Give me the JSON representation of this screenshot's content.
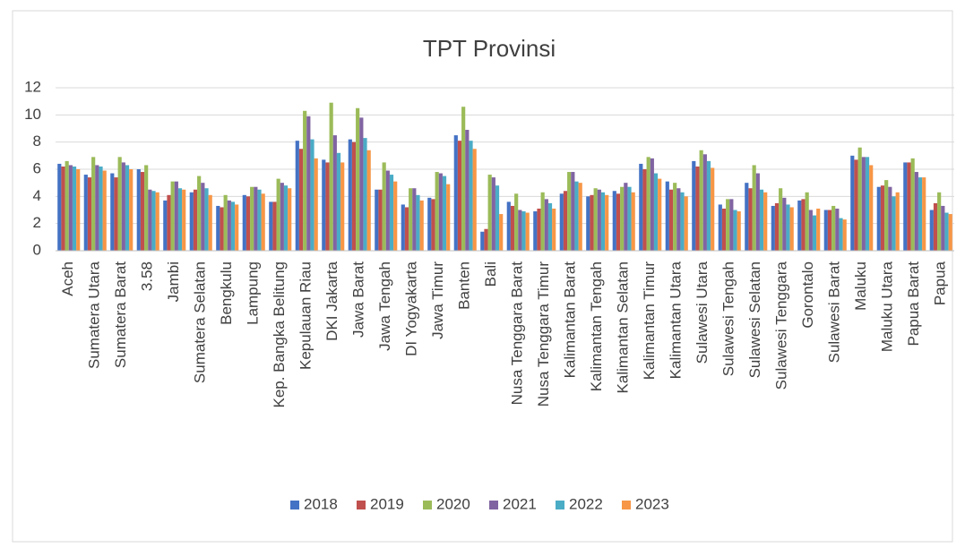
{
  "chart_data": {
    "type": "bar",
    "title": "TPT Provinsi",
    "categories": [
      "Aceh",
      "Sumatera Utara",
      "Sumatera Barat",
      "3.58",
      "Jambi",
      "Sumatera Selatan",
      "Bengkulu",
      "Lampung",
      "Kep. Bangka Belitung",
      "Kepulauan Riau",
      "DKI Jakarta",
      "Jawa Barat",
      "Jawa Tengah",
      "DI Yogyakarta",
      "Jawa Timur",
      "Banten",
      "Bali",
      "Nusa Tenggara Barat",
      "Nusa Tenggara Timur",
      "Kalimantan Barat",
      "Kalimantan Tengah",
      "Kalimantan Selatan",
      "Kalimantan Timur",
      "Kalimantan Utara",
      "Sulawesi Utara",
      "Sulawesi Tengah",
      "Sulawesi Selatan",
      "Sulawesi Tenggara",
      "Gorontalo",
      "Sulawesi Barat",
      "Maluku",
      "Maluku Utara",
      "Papua Barat",
      "Papua"
    ],
    "series": [
      {
        "name": "2018",
        "color": "#4472c4",
        "values": [
          6.4,
          5.6,
          5.7,
          6.0,
          3.7,
          4.3,
          3.3,
          4.1,
          3.6,
          8.1,
          6.7,
          8.2,
          4.5,
          3.4,
          3.9,
          8.5,
          1.4,
          3.6,
          2.9,
          4.2,
          4.0,
          4.4,
          6.4,
          5.1,
          6.6,
          3.4,
          5.0,
          3.3,
          3.7,
          3.0,
          7.0,
          4.7,
          6.5,
          3.0
        ]
      },
      {
        "name": "2019",
        "color": "#c0504d",
        "values": [
          6.2,
          5.4,
          5.4,
          5.8,
          4.1,
          4.5,
          3.2,
          4.0,
          3.6,
          7.5,
          6.5,
          8.0,
          4.5,
          3.2,
          3.8,
          8.1,
          1.6,
          3.3,
          3.1,
          4.4,
          4.1,
          4.2,
          6.0,
          4.5,
          6.2,
          3.1,
          4.6,
          3.5,
          3.8,
          3.0,
          6.7,
          4.8,
          6.5,
          3.5
        ]
      },
      {
        "name": "2020",
        "color": "#9bbb59",
        "values": [
          6.6,
          6.9,
          6.9,
          6.3,
          5.1,
          5.5,
          4.1,
          4.7,
          5.3,
          10.3,
          10.9,
          10.5,
          6.5,
          4.6,
          5.8,
          10.6,
          5.6,
          4.2,
          4.3,
          5.8,
          4.6,
          4.7,
          6.9,
          5.0,
          7.4,
          3.8,
          6.3,
          4.6,
          4.3,
          3.3,
          7.6,
          5.2,
          6.8,
          4.3
        ]
      },
      {
        "name": "2021",
        "color": "#8064a2",
        "values": [
          6.3,
          6.3,
          6.5,
          4.5,
          5.1,
          5.0,
          3.7,
          4.7,
          5.0,
          9.9,
          8.5,
          9.8,
          5.9,
          4.6,
          5.7,
          8.9,
          5.4,
          3.0,
          3.8,
          5.8,
          4.5,
          5.0,
          6.8,
          4.6,
          7.1,
          3.8,
          5.7,
          3.9,
          3.0,
          3.1,
          6.9,
          4.7,
          5.8,
          3.3
        ]
      },
      {
        "name": "2022",
        "color": "#4bacc6",
        "values": [
          6.2,
          6.2,
          6.3,
          4.4,
          4.6,
          4.6,
          3.6,
          4.5,
          4.8,
          8.2,
          7.2,
          8.3,
          5.6,
          4.1,
          5.5,
          8.1,
          4.8,
          2.9,
          3.5,
          5.1,
          4.3,
          4.7,
          5.7,
          4.3,
          6.6,
          3.0,
          4.5,
          3.4,
          2.6,
          2.4,
          6.9,
          4.0,
          5.4,
          2.8
        ]
      },
      {
        "name": "2023",
        "color": "#f79646",
        "values": [
          6.0,
          5.9,
          6.0,
          4.3,
          4.5,
          4.1,
          3.4,
          4.2,
          4.6,
          6.8,
          6.5,
          7.4,
          5.1,
          3.7,
          4.9,
          7.5,
          2.7,
          2.8,
          3.1,
          5.0,
          4.1,
          4.3,
          5.3,
          4.0,
          6.1,
          2.9,
          4.3,
          3.2,
          3.1,
          2.3,
          6.3,
          4.3,
          5.4,
          2.7
        ]
      }
    ],
    "ylim": [
      0,
      12
    ],
    "yticks": [
      0,
      2,
      4,
      6,
      8,
      10,
      12
    ],
    "grid": true,
    "legend": "bottom"
  }
}
